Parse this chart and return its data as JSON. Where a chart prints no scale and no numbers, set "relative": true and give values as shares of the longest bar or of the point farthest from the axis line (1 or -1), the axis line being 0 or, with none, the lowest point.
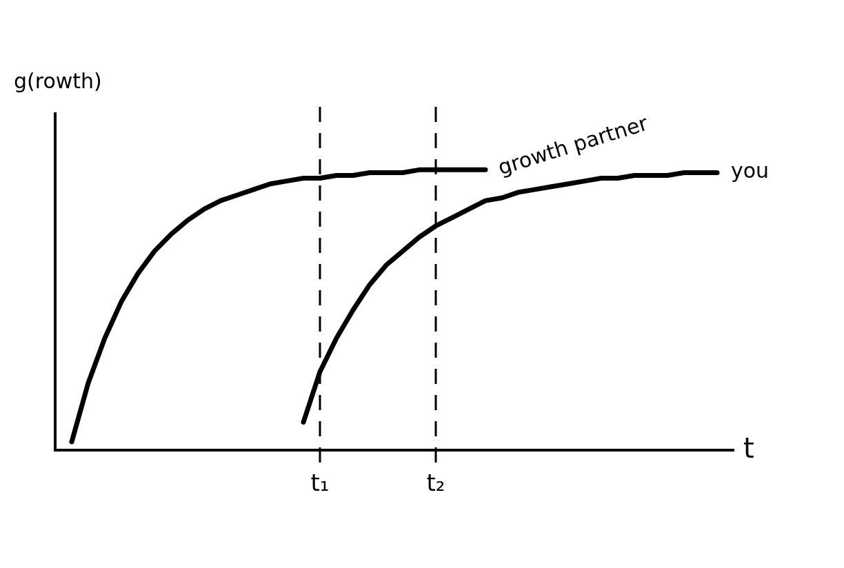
{
  "chart_data": {
    "type": "line",
    "relative": true,
    "ylabel": "g(rowth)",
    "xlabel": "t",
    "tick_labels": "x",
    "grid": "x",
    "legend": false,
    "marker": "none",
    "line_style": "solid",
    "categories": [
      null,
      null,
      null,
      null,
      null,
      null,
      null,
      null,
      null,
      null,
      null,
      null,
      null,
      null,
      null,
      null,
      "t₁",
      null,
      null,
      null,
      null,
      null,
      null,
      "t₂",
      null,
      null,
      null,
      null,
      null,
      null,
      null,
      null,
      null,
      null,
      null,
      null,
      null,
      null,
      null,
      null,
      null,
      null
    ],
    "series": [
      {
        "name": "growth partner",
        "color": "#000000",
        "values": [
          null,
          0.03,
          0.24,
          0.4,
          0.53,
          0.63,
          0.71,
          0.77,
          0.82,
          0.86,
          0.89,
          0.91,
          0.93,
          0.95,
          0.96,
          0.97,
          0.97,
          0.98,
          0.98,
          0.99,
          0.99,
          0.99,
          1,
          1,
          1,
          1,
          1,
          null,
          null,
          null,
          null,
          null,
          null,
          null,
          null,
          null,
          null,
          null,
          null,
          null,
          null,
          null
        ]
      },
      {
        "name": "you",
        "color": "#000000",
        "values": [
          null,
          null,
          null,
          null,
          null,
          null,
          null,
          null,
          null,
          null,
          null,
          null,
          null,
          null,
          null,
          0.1,
          0.28,
          0.4,
          0.5,
          0.59,
          0.66,
          0.71,
          0.76,
          0.8,
          0.83,
          0.86,
          0.89,
          0.9,
          0.92,
          0.93,
          0.94,
          0.95,
          0.96,
          0.97,
          0.97,
          0.98,
          0.98,
          0.98,
          0.99,
          0.99,
          0.99,
          null
        ]
      }
    ]
  }
}
